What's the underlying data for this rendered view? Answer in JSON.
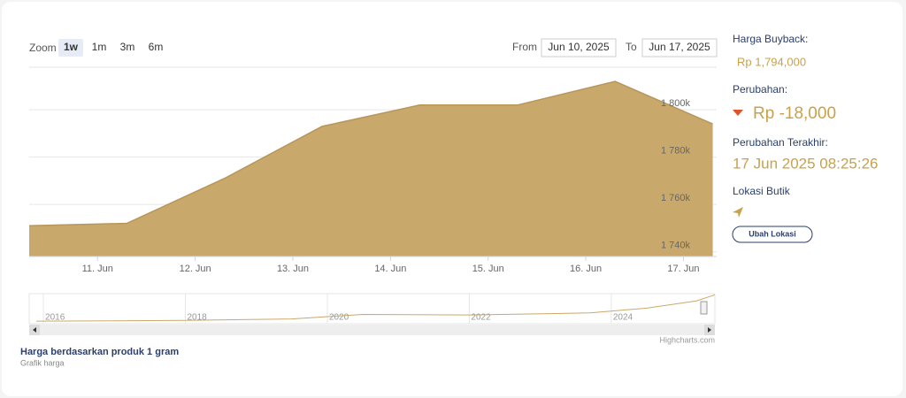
{
  "ui": {
    "zoom_label": "Zoom",
    "zoom_buttons": [
      "1w",
      "1m",
      "3m",
      "6m"
    ],
    "from_label": "From",
    "from_date": "Jun 10, 2025",
    "to_label": "To",
    "to_date": "Jun 17, 2025",
    "buyback_label": "Harga Buyback:",
    "buyback_value": "Rp 1,794,000",
    "change_label": "Perubahan:",
    "change_value": "Rp -18,000",
    "last_update_label": "Perubahan Terakhir:",
    "last_update_value": "17 Jun 2025 08:25:26",
    "location_label": "Lokasi Butik",
    "location_button": "Ubah Lokasi",
    "footer_title": "Harga berdasarkan produk 1 gram",
    "footer_subtitle": "Grafik harga",
    "credit": "Highcharts.com"
  },
  "chart_data": {
    "type": "area",
    "color": "#c9a96b",
    "grid": true,
    "x": [
      10.3,
      11.3,
      12.3,
      13.3,
      14.3,
      15.3,
      16.3,
      17.3
    ],
    "values": [
      1751000,
      1752000,
      1771000,
      1793000,
      1802000,
      1802000,
      1812000,
      1794000
    ],
    "xlim": [
      10.3,
      17.34
    ],
    "xticks": [
      {
        "value": 11,
        "label": "11. Jun"
      },
      {
        "value": 12,
        "label": "12. Jun"
      },
      {
        "value": 13,
        "label": "13. Jun"
      },
      {
        "value": 14,
        "label": "14. Jun"
      },
      {
        "value": 15,
        "label": "15. Jun"
      },
      {
        "value": 16,
        "label": "16. Jun"
      },
      {
        "value": 17,
        "label": "17. Jun"
      }
    ],
    "ylim": [
      1738000,
      1818000
    ],
    "yticks": [
      {
        "value": 1740000,
        "label": "1 740k"
      },
      {
        "value": 1760000,
        "label": "1 760k"
      },
      {
        "value": 1780000,
        "label": "1 780k"
      },
      {
        "value": 1800000,
        "label": "1 800k"
      }
    ],
    "navigator": {
      "x": [
        2015.9,
        2018,
        2019.5,
        2020.5,
        2022,
        2023.7,
        2024.5,
        2025.2,
        2025.46
      ],
      "values": [
        520000,
        560000,
        630000,
        850000,
        820000,
        920000,
        1150000,
        1500000,
        1794000
      ],
      "xlim": [
        2015.8,
        2025.46
      ],
      "ylim": [
        400000,
        1850000
      ],
      "xticks": [
        2016,
        2018,
        2020,
        2022,
        2024
      ]
    }
  }
}
